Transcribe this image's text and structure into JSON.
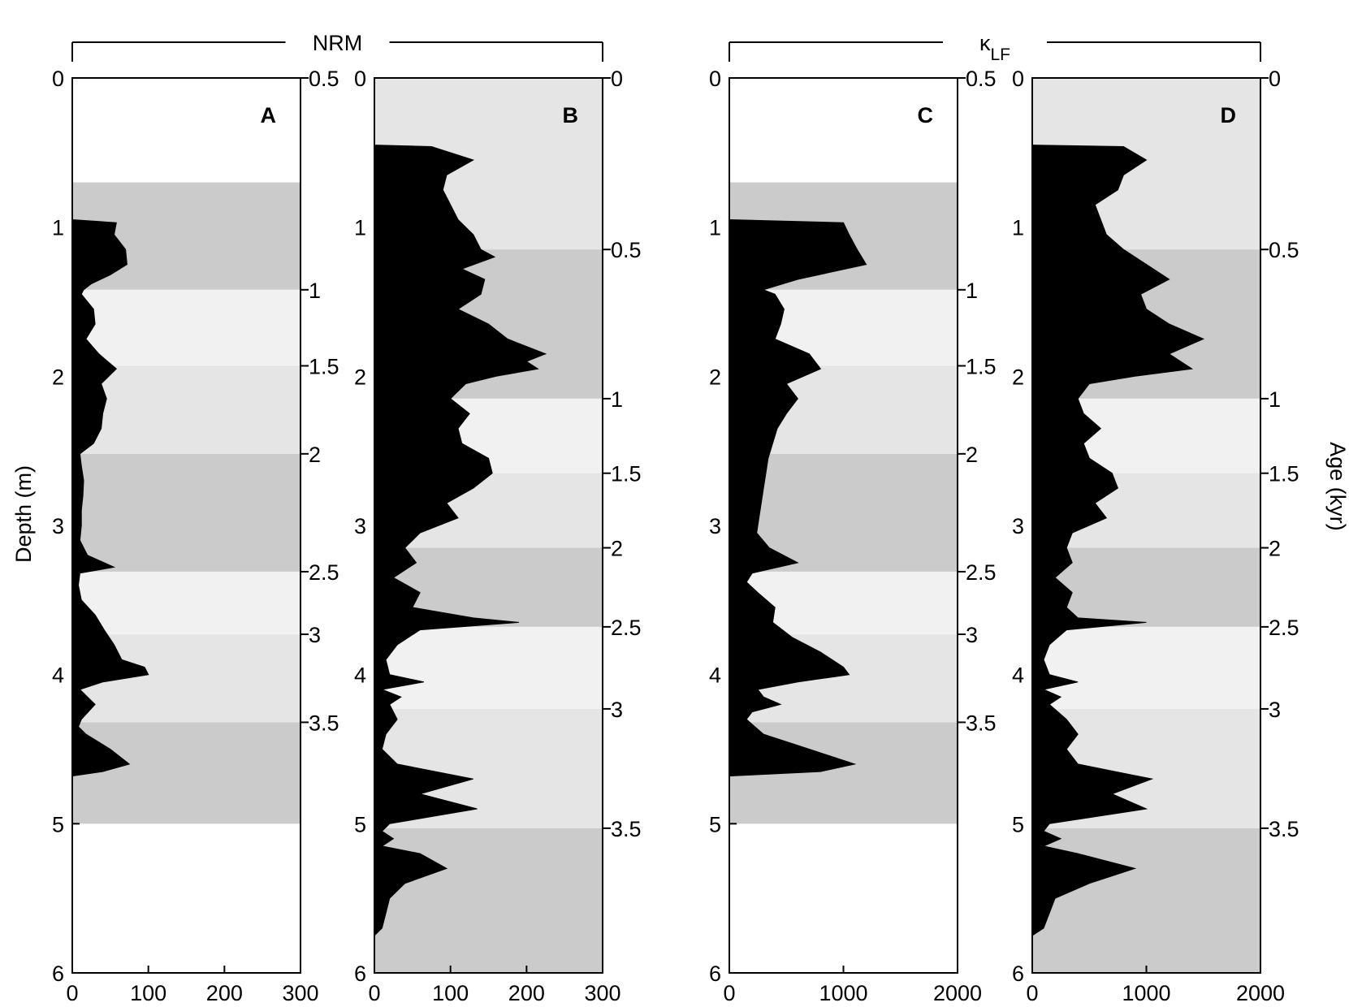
{
  "chart_data": [
    {
      "type": "area",
      "panel": "A",
      "header": "NRM",
      "ylabel": "Depth (m)",
      "y2label": "",
      "xlim": [
        0,
        300
      ],
      "xticks": [
        0,
        100,
        200,
        300
      ],
      "ylim": [
        0,
        6
      ],
      "yticks": [
        0,
        1,
        2,
        3,
        4,
        5,
        6
      ],
      "age_ticks": [
        {
          "age": "0.5",
          "depth": 0
        },
        {
          "age": "1",
          "depth": 1.42
        },
        {
          "age": "1.5",
          "depth": 1.93
        },
        {
          "age": "2",
          "depth": 2.52
        },
        {
          "age": "2.5",
          "depth": 3.31
        },
        {
          "age": "3",
          "depth": 3.73
        },
        {
          "age": "3.5",
          "depth": 4.32
        }
      ],
      "bands": [
        {
          "from": 0.7,
          "to": 1.42,
          "shade": "#cbcbcb"
        },
        {
          "from": 1.42,
          "to": 1.93,
          "shade": "#f1f1f1"
        },
        {
          "from": 1.93,
          "to": 2.52,
          "shade": "#e5e5e5"
        },
        {
          "from": 2.52,
          "to": 3.31,
          "shade": "#cbcbcb"
        },
        {
          "from": 3.31,
          "to": 3.73,
          "shade": "#f1f1f1"
        },
        {
          "from": 3.73,
          "to": 4.32,
          "shade": "#e5e5e5"
        },
        {
          "from": 4.32,
          "to": 5.0,
          "shade": "#cbcbcb"
        }
      ],
      "series": [
        {
          "depth": [
            0.95,
            0.97,
            1.05,
            1.15,
            1.25,
            1.32,
            1.38,
            1.42,
            1.45,
            1.55,
            1.65,
            1.75,
            1.85,
            1.95,
            2.05,
            2.15,
            2.25,
            2.35,
            2.45,
            2.52,
            2.6,
            2.7,
            2.8,
            2.9,
            3.0,
            3.1,
            3.2,
            3.28,
            3.32,
            3.4,
            3.5,
            3.6,
            3.7,
            3.8,
            3.9,
            3.95,
            4.0,
            4.05,
            4.1,
            4.15,
            4.2,
            4.3,
            4.35,
            4.4,
            4.5,
            4.6,
            4.65,
            4.68
          ],
          "values": [
            0,
            58,
            55,
            70,
            72,
            50,
            25,
            15,
            12,
            28,
            30,
            18,
            35,
            58,
            38,
            45,
            40,
            38,
            28,
            10,
            12,
            15,
            14,
            12,
            12,
            10,
            20,
            55,
            10,
            8,
            12,
            30,
            42,
            55,
            65,
            95,
            100,
            40,
            10,
            20,
            30,
            12,
            8,
            18,
            50,
            75,
            40,
            0
          ]
        }
      ]
    },
    {
      "type": "area",
      "panel": "B",
      "header": "",
      "ylabel": "",
      "y2label": "",
      "xlim": [
        0,
        300
      ],
      "xticks": [
        0,
        100,
        200,
        300
      ],
      "ylim": [
        0,
        6
      ],
      "yticks": [
        0,
        1,
        2,
        3,
        4,
        5,
        6
      ],
      "age_ticks": [
        {
          "age": "0",
          "depth": 0
        },
        {
          "age": "0.5",
          "depth": 1.15
        },
        {
          "age": "1",
          "depth": 2.15
        },
        {
          "age": "1.5",
          "depth": 2.65
        },
        {
          "age": "2",
          "depth": 3.15
        },
        {
          "age": "2.5",
          "depth": 3.68
        },
        {
          "age": "3",
          "depth": 4.23
        },
        {
          "age": "3.5",
          "depth": 5.03
        }
      ],
      "bands": [
        {
          "from": 0,
          "to": 1.15,
          "shade": "#e5e5e5"
        },
        {
          "from": 1.15,
          "to": 2.15,
          "shade": "#cbcbcb"
        },
        {
          "from": 2.15,
          "to": 2.65,
          "shade": "#f1f1f1"
        },
        {
          "from": 2.65,
          "to": 3.15,
          "shade": "#e5e5e5"
        },
        {
          "from": 3.15,
          "to": 3.68,
          "shade": "#cbcbcb"
        },
        {
          "from": 3.68,
          "to": 4.23,
          "shade": "#f1f1f1"
        },
        {
          "from": 4.23,
          "to": 5.03,
          "shade": "#e5e5e5"
        },
        {
          "from": 5.03,
          "to": 6.0,
          "shade": "#cbcbcb"
        }
      ],
      "series": [
        {
          "depth": [
            0.45,
            0.46,
            0.55,
            0.65,
            0.75,
            0.85,
            0.95,
            1.05,
            1.15,
            1.2,
            1.28,
            1.35,
            1.45,
            1.55,
            1.65,
            1.75,
            1.85,
            1.9,
            1.95,
            2.0,
            2.05,
            2.15,
            2.25,
            2.35,
            2.45,
            2.55,
            2.65,
            2.75,
            2.85,
            2.95,
            3.05,
            3.15,
            3.25,
            3.35,
            3.45,
            3.55,
            3.62,
            3.65,
            3.7,
            3.8,
            3.9,
            4.0,
            4.05,
            4.1,
            4.15,
            4.2,
            4.3,
            4.4,
            4.5,
            4.6,
            4.7,
            4.8,
            4.9,
            5.0,
            5.05,
            5.1,
            5.15,
            5.2,
            5.3,
            5.4,
            5.5,
            5.6,
            5.7,
            5.75
          ],
          "values": [
            0,
            75,
            130,
            95,
            90,
            100,
            110,
            130,
            140,
            158,
            115,
            145,
            140,
            110,
            150,
            175,
            225,
            200,
            215,
            160,
            120,
            100,
            125,
            110,
            115,
            150,
            155,
            130,
            95,
            110,
            60,
            40,
            55,
            25,
            60,
            50,
            130,
            190,
            60,
            30,
            15,
            20,
            65,
            10,
            35,
            20,
            30,
            15,
            10,
            30,
            130,
            60,
            135,
            20,
            10,
            25,
            10,
            60,
            95,
            40,
            20,
            15,
            10,
            0
          ]
        }
      ]
    },
    {
      "type": "area",
      "panel": "C",
      "header": "κ<tspan baseline-shift='sub' font-size='20'>LF</tspan>",
      "header_text": "κ",
      "header_sub": "LF",
      "ylabel": "",
      "y2label": "",
      "xlim": [
        0,
        2000
      ],
      "xticks": [
        0,
        1000,
        2000
      ],
      "ylim": [
        0,
        6
      ],
      "yticks": [
        0,
        1,
        2,
        3,
        4,
        5,
        6
      ],
      "age_ticks": [
        {
          "age": "0.5",
          "depth": 0
        },
        {
          "age": "1",
          "depth": 1.42
        },
        {
          "age": "1.5",
          "depth": 1.93
        },
        {
          "age": "2",
          "depth": 2.52
        },
        {
          "age": "2.5",
          "depth": 3.31
        },
        {
          "age": "3",
          "depth": 3.73
        },
        {
          "age": "3.5",
          "depth": 4.32
        }
      ],
      "bands": [
        {
          "from": 0.7,
          "to": 1.42,
          "shade": "#cbcbcb"
        },
        {
          "from": 1.42,
          "to": 1.93,
          "shade": "#f1f1f1"
        },
        {
          "from": 1.93,
          "to": 2.52,
          "shade": "#e5e5e5"
        },
        {
          "from": 2.52,
          "to": 3.31,
          "shade": "#cbcbcb"
        },
        {
          "from": 3.31,
          "to": 3.73,
          "shade": "#f1f1f1"
        },
        {
          "from": 3.73,
          "to": 4.32,
          "shade": "#e5e5e5"
        },
        {
          "from": 4.32,
          "to": 5.0,
          "shade": "#cbcbcb"
        }
      ],
      "series": [
        {
          "depth": [
            0.95,
            0.97,
            1.05,
            1.15,
            1.25,
            1.3,
            1.35,
            1.42,
            1.45,
            1.55,
            1.65,
            1.75,
            1.85,
            1.95,
            2.05,
            2.15,
            2.25,
            2.35,
            2.45,
            2.55,
            2.65,
            2.75,
            2.85,
            2.95,
            3.05,
            3.15,
            3.25,
            3.32,
            3.38,
            3.45,
            3.55,
            3.65,
            3.75,
            3.85,
            3.95,
            4.0,
            4.05,
            4.1,
            4.15,
            4.2,
            4.25,
            4.3,
            4.4,
            4.5,
            4.6,
            4.65,
            4.68
          ],
          "values": [
            0,
            1000,
            1050,
            1120,
            1200,
            900,
            600,
            300,
            400,
            480,
            450,
            400,
            700,
            800,
            500,
            600,
            500,
            420,
            380,
            340,
            320,
            300,
            280,
            260,
            240,
            350,
            600,
            200,
            150,
            250,
            400,
            380,
            550,
            800,
            1000,
            1050,
            600,
            250,
            300,
            450,
            200,
            150,
            300,
            700,
            1100,
            800,
            0
          ]
        }
      ]
    },
    {
      "type": "area",
      "panel": "D",
      "header": "",
      "ylabel": "",
      "y2label": "Age (kyr)",
      "xlim": [
        0,
        2000
      ],
      "xticks": [
        0,
        1000,
        2000
      ],
      "ylim": [
        0,
        6
      ],
      "yticks": [
        0,
        1,
        2,
        3,
        4,
        5,
        6
      ],
      "age_ticks": [
        {
          "age": "0",
          "depth": 0
        },
        {
          "age": "0.5",
          "depth": 1.15
        },
        {
          "age": "1",
          "depth": 2.15
        },
        {
          "age": "1.5",
          "depth": 2.65
        },
        {
          "age": "2",
          "depth": 3.15
        },
        {
          "age": "2.5",
          "depth": 3.68
        },
        {
          "age": "3",
          "depth": 4.23
        },
        {
          "age": "3.5",
          "depth": 5.03
        }
      ],
      "bands": [
        {
          "from": 0,
          "to": 1.15,
          "shade": "#e5e5e5"
        },
        {
          "from": 1.15,
          "to": 2.15,
          "shade": "#cbcbcb"
        },
        {
          "from": 2.15,
          "to": 2.65,
          "shade": "#f1f1f1"
        },
        {
          "from": 2.65,
          "to": 3.15,
          "shade": "#e5e5e5"
        },
        {
          "from": 3.15,
          "to": 3.68,
          "shade": "#cbcbcb"
        },
        {
          "from": 3.68,
          "to": 4.23,
          "shade": "#f1f1f1"
        },
        {
          "from": 4.23,
          "to": 5.03,
          "shade": "#e5e5e5"
        },
        {
          "from": 5.03,
          "to": 6.0,
          "shade": "#cbcbcb"
        }
      ],
      "series": [
        {
          "depth": [
            0.45,
            0.46,
            0.55,
            0.65,
            0.75,
            0.85,
            0.95,
            1.05,
            1.15,
            1.25,
            1.35,
            1.45,
            1.55,
            1.65,
            1.75,
            1.85,
            1.95,
            2.0,
            2.05,
            2.15,
            2.25,
            2.35,
            2.45,
            2.55,
            2.65,
            2.75,
            2.85,
            2.95,
            3.05,
            3.15,
            3.25,
            3.35,
            3.45,
            3.55,
            3.62,
            3.65,
            3.7,
            3.8,
            3.9,
            4.0,
            4.05,
            4.1,
            4.15,
            4.2,
            4.3,
            4.4,
            4.5,
            4.6,
            4.7,
            4.8,
            4.9,
            5.0,
            5.05,
            5.1,
            5.15,
            5.2,
            5.3,
            5.4,
            5.5,
            5.6,
            5.7,
            5.75
          ],
          "values": [
            0,
            800,
            1000,
            800,
            750,
            550,
            600,
            650,
            800,
            1000,
            1200,
            950,
            1000,
            1200,
            1500,
            1200,
            1400,
            900,
            500,
            400,
            450,
            600,
            450,
            500,
            700,
            750,
            550,
            650,
            350,
            300,
            350,
            200,
            350,
            300,
            400,
            1000,
            300,
            150,
            100,
            150,
            400,
            100,
            250,
            150,
            300,
            400,
            300,
            400,
            1050,
            700,
            1000,
            150,
            100,
            250,
            100,
            400,
            900,
            500,
            200,
            150,
            100,
            0
          ]
        }
      ]
    }
  ]
}
